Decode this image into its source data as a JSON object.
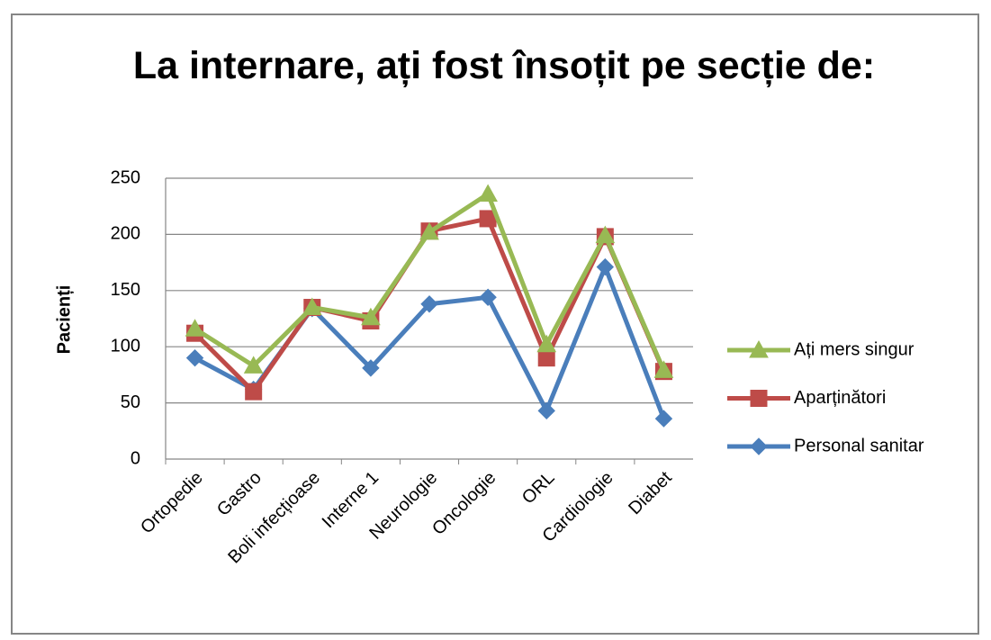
{
  "chart_data": {
    "type": "line",
    "title": "La internare, ați fost însoțit pe secție de:",
    "ylabel": "Pacienți",
    "categories": [
      "Ortopedie",
      "Gastro",
      "Boli infecțioase",
      "Interne 1",
      "Neurologie",
      "Oncologie",
      "ORL",
      "Cardiologie",
      "Diabet"
    ],
    "series": [
      {
        "name": "Personal sanitar",
        "color": "#4a7ebb",
        "marker": "diamond",
        "values": [
          90,
          62,
          134,
          81,
          138,
          144,
          43,
          171,
          36
        ]
      },
      {
        "name": "Aparținători",
        "color": "#be4b48",
        "marker": "square",
        "values": [
          112,
          60,
          135,
          123,
          203,
          214,
          90,
          198,
          78
        ]
      },
      {
        "name": "Ați mers singur",
        "color": "#98b954",
        "marker": "triangle",
        "values": [
          116,
          83,
          135,
          126,
          202,
          236,
          102,
          199,
          79
        ]
      }
    ],
    "ylim": [
      0,
      250
    ],
    "yticks": [
      0,
      50,
      100,
      150,
      200,
      250
    ],
    "grid": true,
    "legend": "right"
  }
}
